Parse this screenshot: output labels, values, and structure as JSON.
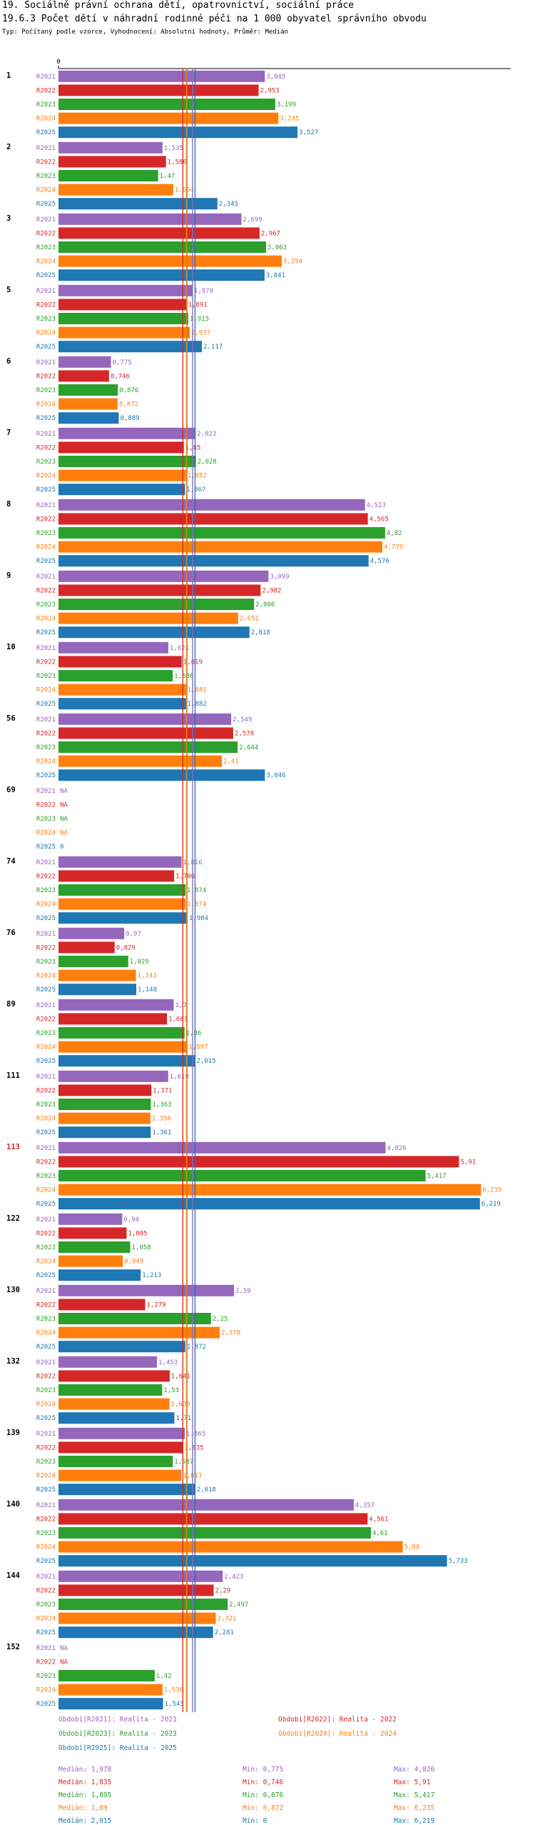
{
  "title": "19. Sociálně právní ochrana dětí, opatrovnictví, sociální práce",
  "subtitle": "19.6.3 Počet dětí v náhradní rodinné péči na 1 000 obyvatel správního obvodu",
  "meta": "Typ: Počítaný podle vzorce, Vyhodnocení: Absolutní hodnoty, Průměr: Medián",
  "chart_data": {
    "type": "bar",
    "orientation": "horizontal",
    "axis_zero_label": "0",
    "xlim": [
      0,
      6.7
    ],
    "highlight_group": "113",
    "series_names": [
      "R2021",
      "R2022",
      "R2023",
      "R2024",
      "R2025"
    ],
    "colors": [
      "#9467bd",
      "#d62728",
      "#2ca02c",
      "#ff7f0e",
      "#1f77b4"
    ],
    "groups": [
      {
        "id": "1",
        "values": [
          "3,045",
          "2,953",
          "3,199",
          "3,245",
          "3,527"
        ]
      },
      {
        "id": "2",
        "values": [
          "1,535",
          "1,586",
          "1,47",
          "1,694",
          "2,345"
        ]
      },
      {
        "id": "3",
        "values": [
          "2,699",
          "2,967",
          "3,063",
          "3,294",
          "3,041"
        ]
      },
      {
        "id": "5",
        "values": [
          "1,978",
          "1,891",
          "1,915",
          "1,937",
          "2,117"
        ]
      },
      {
        "id": "6",
        "values": [
          "0,775",
          "0,746",
          "0,876",
          "0,872",
          "0,889"
        ]
      },
      {
        "id": "7",
        "values": [
          "2,023",
          "1,85",
          "2,028",
          "1,882",
          "1,867"
        ]
      },
      {
        "id": "8",
        "values": [
          "4,523",
          "4,565",
          "4,82",
          "4,779",
          "4,576"
        ]
      },
      {
        "id": "9",
        "values": [
          "3,099",
          "2,982",
          "2,886",
          "2,651",
          "2,818"
        ]
      },
      {
        "id": "10",
        "values": [
          "1,621",
          "1,819",
          "1,686",
          "1,881",
          "1,882"
        ]
      },
      {
        "id": "56",
        "values": [
          "2,549",
          "2,578",
          "2,644",
          "2,41",
          "3,046"
        ]
      },
      {
        "id": "69",
        "values": [
          "NA",
          "NA",
          "NA",
          "NA",
          "0"
        ]
      },
      {
        "id": "74",
        "values": [
          "1,816",
          "1,706",
          "1,874",
          "1,874",
          "1,904"
        ]
      },
      {
        "id": "76",
        "values": [
          "0,97",
          "0,829",
          "1,029",
          "1,143",
          "1,148"
        ]
      },
      {
        "id": "89",
        "values": [
          "1,7",
          "1,601",
          "1,86",
          "1,897",
          "2,015"
        ]
      },
      {
        "id": "111",
        "values": [
          "1,619",
          "1,371",
          "1,363",
          "1,356",
          "1,361"
        ]
      },
      {
        "id": "113",
        "values": [
          "4,826",
          "5,91",
          "5,417",
          "6,235",
          "6,219"
        ]
      },
      {
        "id": "122",
        "values": [
          "0,94",
          "1,005",
          "1,058",
          "0,949",
          "1,213"
        ]
      },
      {
        "id": "130",
        "values": [
          "2,59",
          "1,279",
          "2,25",
          "2,378",
          "1,872"
        ]
      },
      {
        "id": "132",
        "values": [
          "1,453",
          "1,641",
          "1,53",
          "1,638",
          "1,71"
        ]
      },
      {
        "id": "139",
        "values": [
          "1,865",
          "1,835",
          "1,687",
          "1,813",
          "2,018"
        ]
      },
      {
        "id": "140",
        "values": [
          "4,357",
          "4,561",
          "4,61",
          "5,08",
          "5,733"
        ]
      },
      {
        "id": "144",
        "values": [
          "2,423",
          "2,29",
          "2,497",
          "2,321",
          "2,281"
        ]
      },
      {
        "id": "152",
        "values": [
          "NA",
          "NA",
          "1,42",
          "1,536",
          "1,543"
        ]
      }
    ],
    "medians": [
      1.978,
      1.835,
      1.895,
      1.89,
      2.015
    ]
  },
  "legend": {
    "periods": [
      "Období[R2021]: Realita - 2021",
      "Období[R2022]: Realita - 2022",
      "Období[R2023]: Realita - 2023",
      "Období[R2024]: Realita - 2024",
      "Období[R2025]: Realita - 2025"
    ],
    "stats": [
      {
        "median": "Medián: 1,978",
        "min": "Min: 0,775",
        "max": "Max: 4,826"
      },
      {
        "median": "Medián: 1,835",
        "min": "Min: 0,746",
        "max": "Max: 5,91"
      },
      {
        "median": "Medián: 1,895",
        "min": "Min: 0,876",
        "max": "Max: 5,417"
      },
      {
        "median": "Medián: 1,89",
        "min": "Min: 0,872",
        "max": "Max: 6,235"
      },
      {
        "median": "Medián: 2,015",
        "min": "Min: 0",
        "max": "Max: 6,219"
      }
    ]
  }
}
